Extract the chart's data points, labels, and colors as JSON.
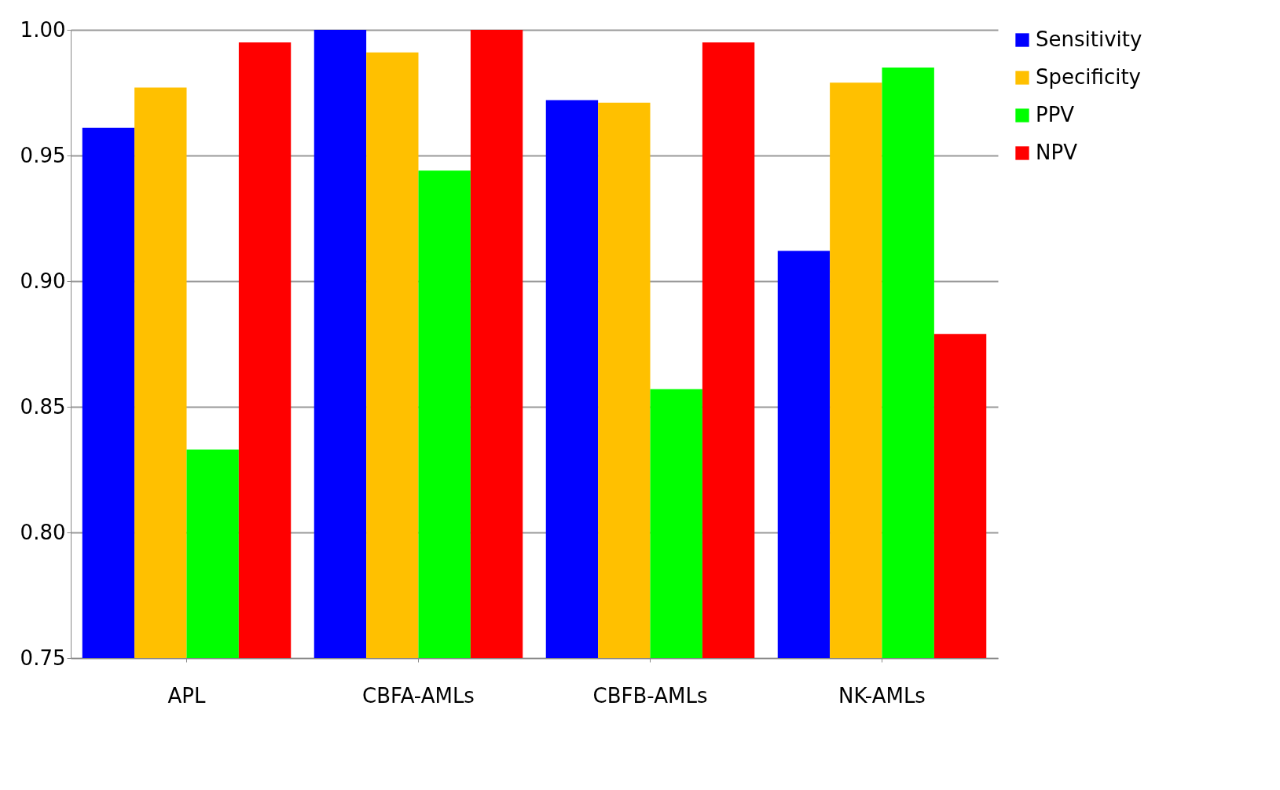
{
  "chart_data": {
    "type": "bar",
    "categories": [
      "APL",
      "CBFA-AMLs",
      "CBFB-AMLs",
      "NK-AMLs"
    ],
    "series": [
      {
        "name": "Sensitivity",
        "color": "#0000ff",
        "values": [
          0.961,
          1.0,
          0.972,
          0.912
        ]
      },
      {
        "name": "Specificity",
        "color": "#ffc000",
        "values": [
          0.977,
          0.991,
          0.971,
          0.979
        ]
      },
      {
        "name": "PPV",
        "color": "#00ff00",
        "values": [
          0.833,
          0.944,
          0.857,
          0.985
        ]
      },
      {
        "name": "NPV",
        "color": "#ff0000",
        "values": [
          0.995,
          1.0,
          0.995,
          0.879
        ]
      }
    ],
    "ylim": [
      0.75,
      1.0
    ],
    "yticks": [
      {
        "value": 0.75,
        "label": "0.75"
      },
      {
        "value": 0.8,
        "label": "0.80"
      },
      {
        "value": 0.85,
        "label": "0.85"
      },
      {
        "value": 0.9,
        "label": "0.90"
      },
      {
        "value": 0.95,
        "label": "0.95"
      },
      {
        "value": 1.0,
        "label": "1.00"
      }
    ],
    "grid": "y",
    "legend": "right"
  }
}
